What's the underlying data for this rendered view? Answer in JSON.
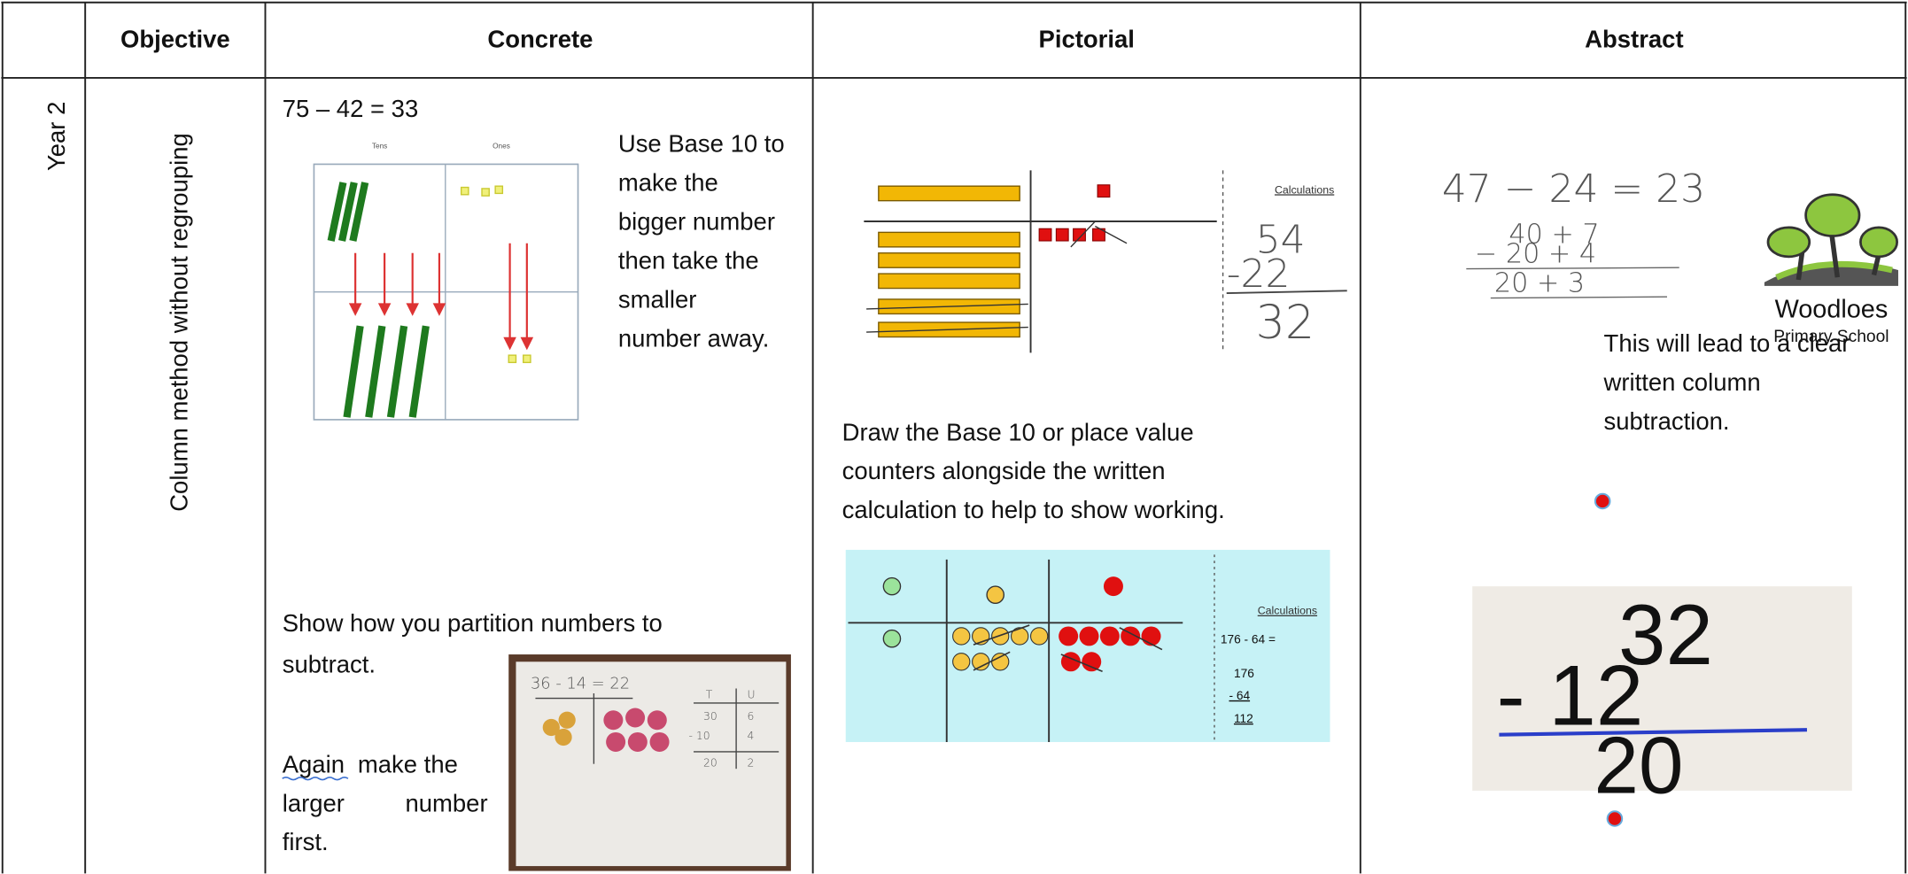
{
  "table": {
    "headers": [
      "Objective",
      "Concrete",
      "Pictorial",
      "Abstract"
    ],
    "row": {
      "year": "Year 2",
      "objective": "Column method without regrouping",
      "concrete": {
        "equation": "75 – 42 = 33",
        "tens_label": "Tens",
        "ones_label": "Ones",
        "instruction": [
          "Use Base 10 to",
          "make the",
          "bigger number",
          "then take the",
          "smaller",
          "number away."
        ],
        "partition_text": [
          "Show how you partition numbers to",
          "subtract."
        ],
        "again_text": [
          "Again",
          "make the",
          "larger",
          "number",
          "first."
        ],
        "whiteboard": {
          "equation": "36 - 14 = 22",
          "cells": [
            [
              "T",
              "U"
            ],
            [
              "30",
              "6"
            ],
            [
              "- 10",
              "4"
            ],
            [
              "20",
              "2"
            ]
          ]
        }
      },
      "pictorial": {
        "image_one": {
          "calc_label": "Calculations",
          "written": [
            "54",
            "-22",
            "32"
          ]
        },
        "instruction": [
          "Draw the Base 10 or place value",
          "counters alongside the written",
          "calculation to help to show working."
        ],
        "image_two": {
          "calc_label": "Calculations",
          "calc": [
            "176 - 64 =",
            "176",
            "- 64",
            "112"
          ]
        }
      },
      "abstract": {
        "written": [
          "47 − 24 = 23",
          "40 + 7",
          "− 20 + 4",
          "20 + 3"
        ],
        "logo": {
          "name": "Woodloes",
          "subtitle": "Primary School"
        },
        "text": [
          "This will lead to a clear",
          "written column",
          "subtraction."
        ],
        "photo": [
          "32",
          "- 12",
          "20"
        ]
      }
    }
  }
}
